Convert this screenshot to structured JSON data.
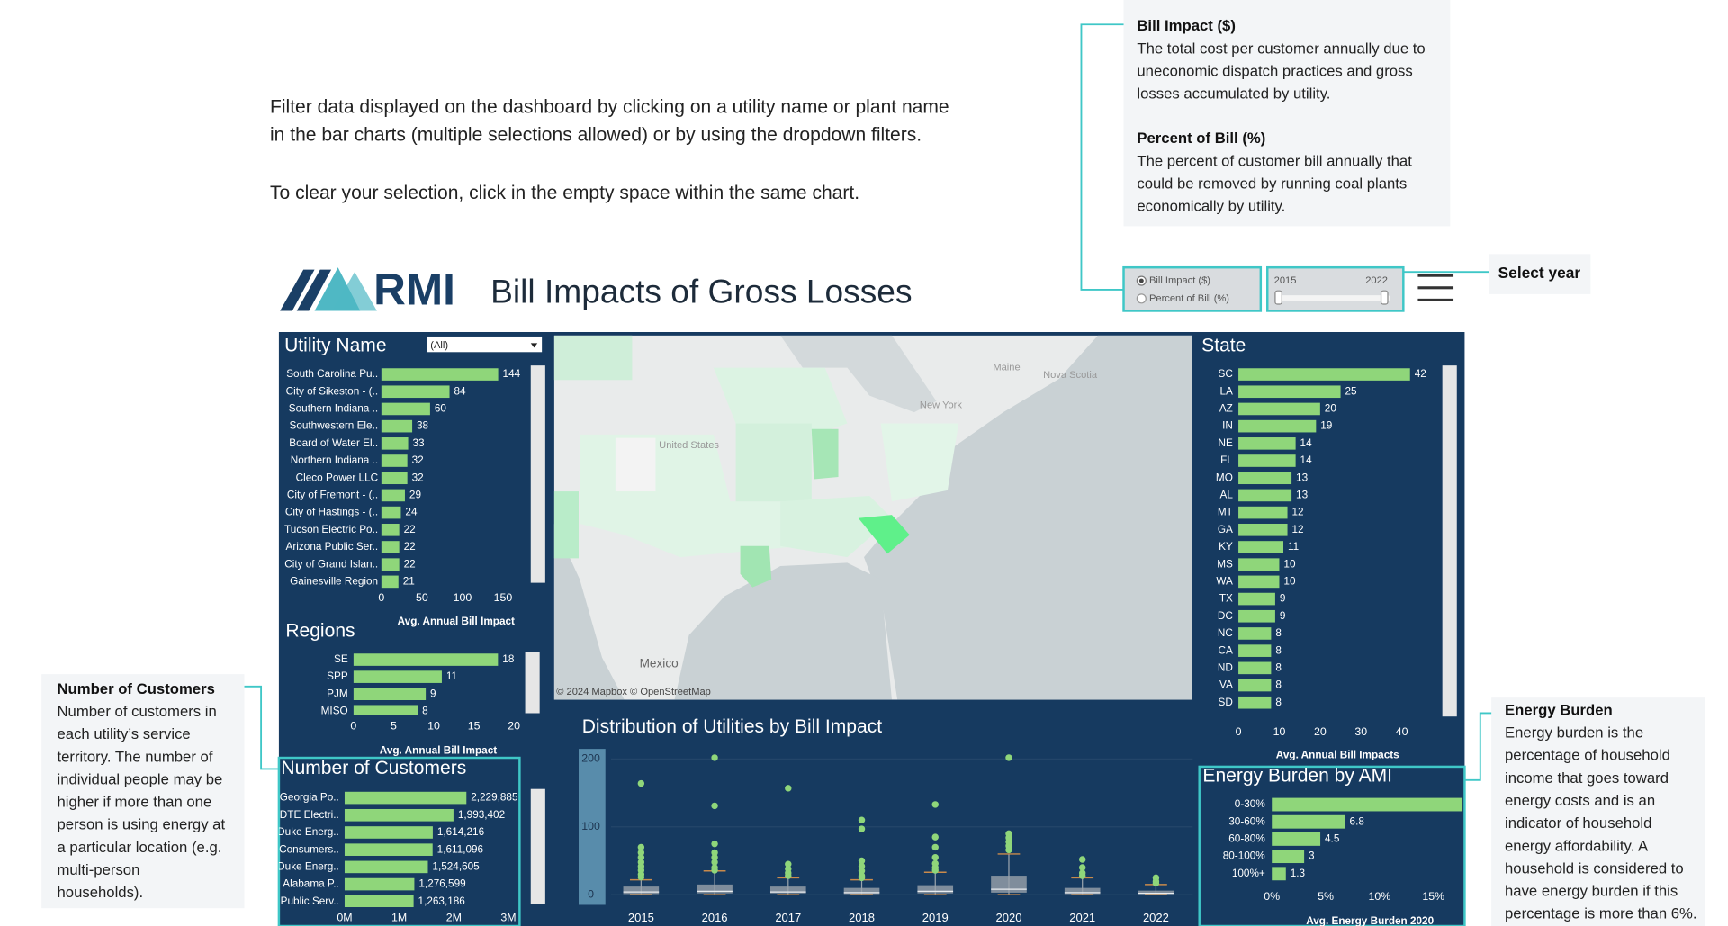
{
  "instructions": [
    "Filter data displayed on the dashboard by clicking on a utility name or plant name",
    "in the bar charts (multiple selections allowed) or by using the dropdown filters.",
    "To clear your selection, click in the empty space within the same chart."
  ],
  "definitions": [
    {
      "title": "Bill Impact ($)",
      "lines": [
        "The total cost per customer annually due to",
        "uneconomic dispatch practices and gross",
        "losses accumulated by utility."
      ]
    },
    {
      "title": "Percent of Bill (%)",
      "lines": [
        "The percent of customer bill annually that",
        "could be removed by running coal plants",
        "economically by utility."
      ]
    }
  ],
  "logo": "RMI",
  "title": "Bill Impacts of Gross Losses",
  "measure_options": [
    "Bill Impact ($)",
    "Percent of Bill (%)"
  ],
  "year_range": [
    "2015",
    "2022"
  ],
  "select_year": "Select year",
  "filter_dropdown": "(All)",
  "notes": [
    {
      "title": "Number of Customers",
      "lines": [
        "Number of customers in",
        "each utility’s service",
        "territory. The number of",
        "individual people may be",
        "higher if more than one",
        "person is using energy at",
        "a particular location (e.g.",
        "multi-person",
        "households)."
      ]
    },
    {
      "title": "Energy Burden",
      "lines": [
        "Energy burden is the",
        "percentage of household",
        "income that goes toward",
        "energy costs and is an",
        "indicator of household",
        "energy affordability. A",
        "household is considered to",
        "have energy burden if this",
        "percentage is more than 6%."
      ]
    }
  ],
  "map": {
    "labels": [
      "United States",
      "Mexico",
      "New York",
      "Maine",
      "Nova Scotia"
    ],
    "attribution": "© 2024 Mapbox © OpenStreetMap"
  },
  "chart_data": [
    {
      "type": "hbar",
      "title": "Utility Name",
      "color": "#8fd67a",
      "categories": [
        "South Carolina Pu..",
        "City of Sikeston - (..",
        "Southern Indiana ..",
        "Southwestern Ele..",
        "Board of Water El..",
        "Northern Indiana ..",
        "Cleco Power LLC",
        "City of Fremont - (..",
        "City of Hastings - (..",
        "Tucson Electric Po..",
        "Arizona Public Ser..",
        "City of Grand Islan..",
        "Gainesville Region"
      ],
      "values": [
        144,
        84,
        60,
        38,
        33,
        32,
        32,
        29,
        24,
        22,
        22,
        22,
        21
      ],
      "xlim": [
        0,
        180
      ],
      "xticks": [
        0,
        50,
        100,
        150
      ],
      "x_label": "Avg. Annual Bill Impact"
    },
    {
      "type": "hbar",
      "title": "Regions",
      "color": "#8fd67a",
      "categories": [
        "SE",
        "SPP",
        "PJM",
        "MISO"
      ],
      "values": [
        18,
        11,
        9,
        8
      ],
      "xlim": [
        0,
        20
      ],
      "xticks": [
        0,
        5,
        10,
        15,
        20
      ],
      "x_label": "Avg. Annual Bill Impact"
    },
    {
      "type": "hbar",
      "title": "State",
      "color": "#8fd67a",
      "categories": [
        "SC",
        "LA",
        "AZ",
        "IN",
        "NE",
        "FL",
        "MO",
        "AL",
        "MT",
        "GA",
        "KY",
        "MS",
        "WA",
        "TX",
        "DC",
        "NC",
        "CA",
        "ND",
        "VA",
        "SD"
      ],
      "values": [
        42,
        25,
        20,
        19,
        14,
        14,
        13,
        13,
        12,
        12,
        11,
        10,
        10,
        9,
        9,
        8,
        8,
        8,
        8,
        8
      ],
      "xlim": [
        0,
        45
      ],
      "xticks": [
        0,
        10,
        20,
        30,
        40
      ],
      "x_label": "Avg. Annual Bill Impacts"
    },
    {
      "type": "hbar",
      "title": "Number of Customers",
      "color": "#8fd67a",
      "categories": [
        "Georgia Po..",
        "DTE Electri..",
        "Duke Energ..",
        "Consumers..",
        "Duke Energ..",
        "Alabama P..",
        "Public Serv.."
      ],
      "values": [
        2229885,
        1993402,
        1614216,
        1611096,
        1524605,
        1276599,
        1263186
      ],
      "value_labels": [
        "2,229,885",
        "1,993,402",
        "1,614,216",
        "1,611,096",
        "1,524,605",
        "1,276,599",
        "1,263,186"
      ],
      "xlim": [
        0,
        3000000
      ],
      "xticks": [
        {
          "value": 0,
          "label": "0M"
        },
        {
          "value": 1000000,
          "label": "1M"
        },
        {
          "value": 2000000,
          "label": "2M"
        },
        {
          "value": 3000000,
          "label": "3M"
        }
      ]
    },
    {
      "type": "hbar",
      "title": "Energy Burden by AMI",
      "color": "#8fd67a",
      "categories": [
        "0-30%",
        "30-60%",
        "60-80%",
        "80-100%",
        "100%+"
      ],
      "values": [
        17.7,
        6.8,
        4.5,
        3.0,
        1.3
      ],
      "xlim": [
        0,
        18
      ],
      "xticks": [
        {
          "value": 0,
          "label": "0%"
        },
        {
          "value": 5,
          "label": "5%"
        },
        {
          "value": 10,
          "label": "10%"
        },
        {
          "value": 15,
          "label": "15%"
        }
      ],
      "x_label": "Avg. Energy Burden 2020"
    },
    {
      "type": "box",
      "title": "Distribution of Utilities by Bill Impact",
      "color": "#8fd67a",
      "categories": [
        "2015",
        "2016",
        "2017",
        "2018",
        "2019",
        "2020",
        "2021",
        "2022"
      ],
      "whisker_low": [
        0,
        0,
        0,
        0,
        0,
        0,
        0,
        0
      ],
      "q1": [
        1,
        2,
        2,
        1,
        2,
        3,
        1,
        1
      ],
      "median": [
        4,
        5,
        4,
        3,
        5,
        8,
        3,
        2
      ],
      "q3": [
        12,
        15,
        12,
        10,
        14,
        28,
        10,
        6
      ],
      "whisker_high": [
        22,
        35,
        25,
        22,
        33,
        60,
        25,
        15
      ],
      "outliers": [
        [
          164,
          70,
          62,
          55,
          48,
          42,
          36,
          30,
          26
        ],
        [
          202,
          131,
          75,
          62,
          55,
          48,
          40,
          36
        ],
        [
          157,
          45,
          38,
          32,
          28
        ],
        [
          110,
          97,
          50,
          42,
          35,
          28,
          25
        ],
        [
          133,
          85,
          70,
          55,
          46,
          40,
          36
        ],
        [
          202,
          90,
          84,
          78,
          72,
          66
        ],
        [
          52,
          40,
          32,
          28
        ],
        [
          25,
          20,
          17
        ]
      ],
      "ylim": [
        -15,
        215
      ],
      "yticks": [
        0,
        100,
        200
      ]
    }
  ]
}
